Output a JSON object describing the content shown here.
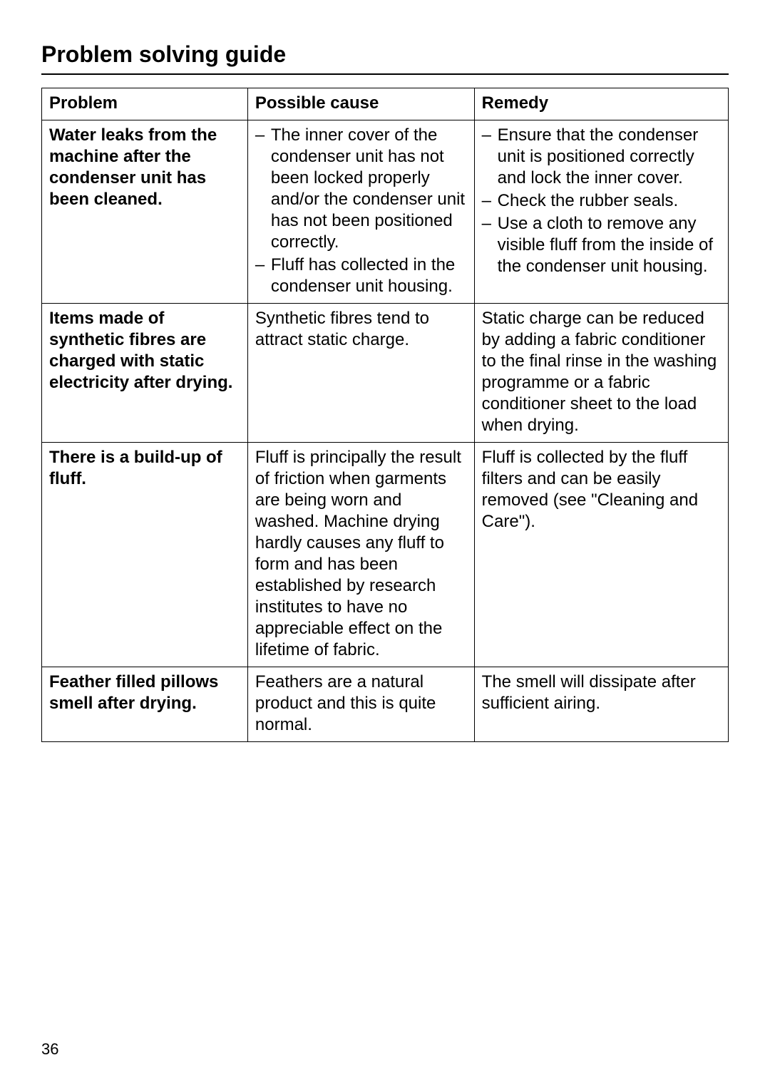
{
  "title": "Problem solving guide",
  "page_number": "36",
  "table": {
    "headers": [
      "Problem",
      "Possible cause",
      "Remedy"
    ],
    "rows": [
      {
        "problem": "Water leaks from the machine after the condenser unit has been cleaned.",
        "cause_items": [
          "The inner cover of the condenser unit has not been locked properly and/or the condenser unit has not been positioned correctly.",
          "Fluff has collected in the condenser unit housing."
        ],
        "remedy_items": [
          "Ensure that the condenser unit is positioned correctly and lock the inner cover.",
          "Check the rubber seals.",
          "Use a cloth to remove any visible fluff from the inside of the condenser unit housing."
        ]
      },
      {
        "problem": "Items made of synthetic fibres are charged with static electricity after drying.",
        "cause_text": "Synthetic fibres tend to attract static charge.",
        "remedy_text": "Static charge can be reduced by adding a fabric conditioner to the final rinse in the washing programme or a fabric conditioner sheet to the load when drying."
      },
      {
        "problem": "There is a build-up of fluff.",
        "cause_text": "Fluff is principally the result of friction when garments are being worn and washed. Machine drying hardly causes any fluff to form and has been established by research institutes to have no appreciable effect on the lifetime of fabric.",
        "remedy_text": "Fluff is collected by the fluff filters and can be easily removed (see \"Cleaning and Care\")."
      },
      {
        "problem": "Feather filled pillows smell after drying.",
        "cause_text": "Feathers are a natural product and this is quite normal.",
        "remedy_text": "The smell will dissipate after sufficient airing."
      }
    ]
  }
}
